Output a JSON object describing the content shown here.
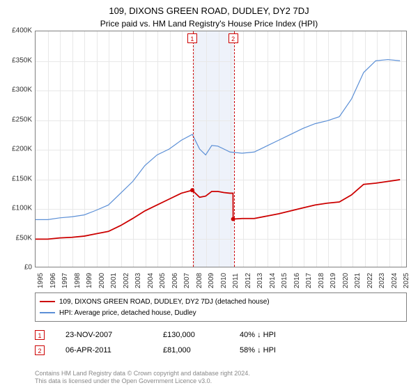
{
  "title": "109, DIXONS GREEN ROAD, DUDLEY, DY2 7DJ",
  "subtitle": "Price paid vs. HM Land Registry's House Price Index (HPI)",
  "chart": {
    "type": "line",
    "background_color": "#ffffff",
    "grid_color": "#e8e8e8",
    "border_color": "#808080",
    "x": {
      "min": 1995,
      "max": 2025.5,
      "ticks": [
        1995,
        1996,
        1997,
        1998,
        1999,
        2000,
        2001,
        2002,
        2003,
        2004,
        2005,
        2006,
        2007,
        2008,
        2009,
        2010,
        2011,
        2012,
        2013,
        2014,
        2015,
        2016,
        2017,
        2018,
        2019,
        2020,
        2021,
        2022,
        2023,
        2024,
        2025
      ]
    },
    "y": {
      "min": 0,
      "max": 400000,
      "tick_step": 50000,
      "label_prefix": "£",
      "label_suffix": "K",
      "divide": 1000
    },
    "event_band": {
      "from": 2007.9,
      "to": 2011.3,
      "color": "#eef2fa"
    },
    "series": [
      {
        "name": "109, DIXONS GREEN ROAD, DUDLEY, DY2 7DJ (detached house)",
        "color": "#cc0000",
        "width": 1.8,
        "points": [
          [
            1995,
            47000
          ],
          [
            1996,
            47000
          ],
          [
            1997,
            49000
          ],
          [
            1998,
            50000
          ],
          [
            1999,
            52000
          ],
          [
            2000,
            56000
          ],
          [
            2001,
            60000
          ],
          [
            2002,
            70000
          ],
          [
            2003,
            82000
          ],
          [
            2004,
            95000
          ],
          [
            2005,
            105000
          ],
          [
            2006,
            115000
          ],
          [
            2007,
            125000
          ],
          [
            2007.9,
            130000
          ],
          [
            2008,
            128000
          ],
          [
            2008.5,
            118000
          ],
          [
            2009,
            120000
          ],
          [
            2009.5,
            128000
          ],
          [
            2010,
            128000
          ],
          [
            2010.5,
            126000
          ],
          [
            2011,
            125000
          ],
          [
            2011.25,
            125000
          ],
          [
            2011.26,
            81000
          ],
          [
            2012,
            82000
          ],
          [
            2013,
            82000
          ],
          [
            2014,
            86000
          ],
          [
            2015,
            90000
          ],
          [
            2016,
            95000
          ],
          [
            2017,
            100000
          ],
          [
            2018,
            105000
          ],
          [
            2019,
            108000
          ],
          [
            2020,
            110000
          ],
          [
            2021,
            122000
          ],
          [
            2022,
            140000
          ],
          [
            2023,
            142000
          ],
          [
            2024,
            145000
          ],
          [
            2025,
            148000
          ]
        ]
      },
      {
        "name": "HPI: Average price, detached house, Dudley",
        "color": "#5b8fd6",
        "width": 1.2,
        "points": [
          [
            1995,
            80000
          ],
          [
            1996,
            80000
          ],
          [
            1997,
            83000
          ],
          [
            1998,
            85000
          ],
          [
            1999,
            88000
          ],
          [
            2000,
            96000
          ],
          [
            2001,
            105000
          ],
          [
            2002,
            125000
          ],
          [
            2003,
            145000
          ],
          [
            2004,
            172000
          ],
          [
            2005,
            190000
          ],
          [
            2006,
            200000
          ],
          [
            2007,
            215000
          ],
          [
            2007.9,
            225000
          ],
          [
            2008.5,
            200000
          ],
          [
            2009,
            190000
          ],
          [
            2009.5,
            206000
          ],
          [
            2010,
            205000
          ],
          [
            2010.5,
            200000
          ],
          [
            2011,
            195000
          ],
          [
            2012,
            193000
          ],
          [
            2013,
            195000
          ],
          [
            2014,
            205000
          ],
          [
            2015,
            215000
          ],
          [
            2016,
            225000
          ],
          [
            2017,
            235000
          ],
          [
            2018,
            243000
          ],
          [
            2019,
            248000
          ],
          [
            2020,
            255000
          ],
          [
            2021,
            285000
          ],
          [
            2022,
            330000
          ],
          [
            2023,
            350000
          ],
          [
            2024,
            352000
          ],
          [
            2025,
            350000
          ]
        ]
      }
    ],
    "markers": [
      {
        "x": 2007.9,
        "y": 130000,
        "color": "#cc0000",
        "r": 3
      },
      {
        "x": 2011.26,
        "y": 81000,
        "color": "#cc0000",
        "r": 3
      }
    ],
    "events": [
      {
        "num": "1",
        "x": 2007.9,
        "date": "23-NOV-2007",
        "price": "£130,000",
        "vs": "40% ↓ HPI"
      },
      {
        "num": "2",
        "x": 2011.26,
        "date": "06-APR-2011",
        "price": "£81,000",
        "vs": "58% ↓ HPI"
      }
    ]
  },
  "footer": {
    "line1": "Contains HM Land Registry data © Crown copyright and database right 2024.",
    "line2": "This data is licensed under the Open Government Licence v3.0."
  }
}
